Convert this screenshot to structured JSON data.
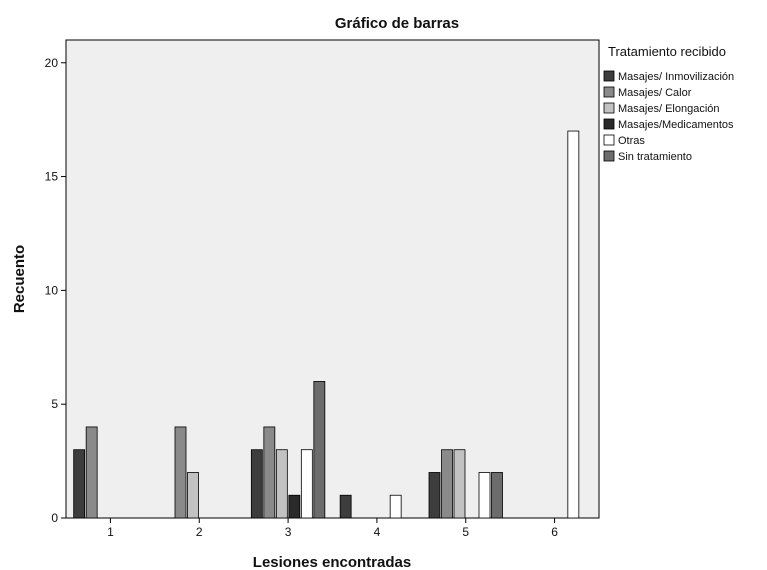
{
  "chart_data": {
    "type": "bar",
    "title": "Gráfico de barras",
    "xlabel": "Lesiones encontradas",
    "ylabel": "Recuento",
    "categories": [
      "1",
      "2",
      "3",
      "4",
      "5",
      "6"
    ],
    "ylim": [
      0,
      21
    ],
    "yticks": [
      0,
      5,
      10,
      15,
      20
    ],
    "legend_title": "Tratamiento recibido",
    "legend_position": "top-right outside",
    "grid": false,
    "background_color": "#efefef",
    "series": [
      {
        "name": "Masajes/ Inmovilización",
        "color": "#3d3d3d",
        "values": [
          3,
          0,
          3,
          1,
          2,
          0
        ]
      },
      {
        "name": "Masajes/ Calor",
        "color": "#8a8a8a",
        "values": [
          4,
          4,
          4,
          0,
          3,
          0
        ]
      },
      {
        "name": "Masajes/ Elongación",
        "color": "#c2c2c2",
        "values": [
          0,
          2,
          3,
          0,
          3,
          0
        ]
      },
      {
        "name": "Masajes/Medicamentos",
        "color": "#2a2a2a",
        "values": [
          0,
          0,
          1,
          0,
          0,
          0
        ]
      },
      {
        "name": "Otras",
        "color": "#ffffff",
        "values": [
          0,
          0,
          3,
          1,
          2,
          17
        ]
      },
      {
        "name": "Sin tratamiento",
        "color": "#6c6c6c",
        "values": [
          0,
          0,
          6,
          0,
          2,
          0
        ]
      }
    ]
  }
}
